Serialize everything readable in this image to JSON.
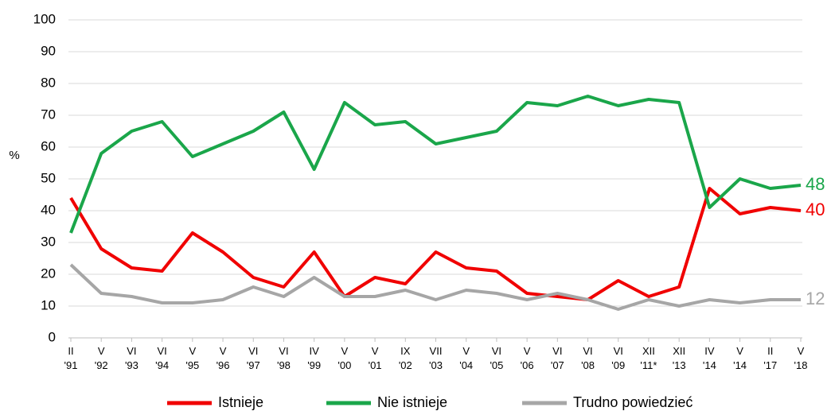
{
  "chart_data": {
    "type": "line",
    "y_label": "%",
    "categories": [
      [
        "II",
        "'91"
      ],
      [
        "V",
        "'92"
      ],
      [
        "VI",
        "'93"
      ],
      [
        "VI",
        "'94"
      ],
      [
        "V",
        "'95"
      ],
      [
        "V",
        "'96"
      ],
      [
        "VI",
        "'97"
      ],
      [
        "VI",
        "'98"
      ],
      [
        "IV",
        "'99"
      ],
      [
        "V",
        "'00"
      ],
      [
        "V",
        "'01"
      ],
      [
        "IX",
        "'02"
      ],
      [
        "VII",
        "'03"
      ],
      [
        "V",
        "'04"
      ],
      [
        "VI",
        "'05"
      ],
      [
        "V",
        "'06"
      ],
      [
        "VI",
        "'07"
      ],
      [
        "VI",
        "'08"
      ],
      [
        "VI",
        "'09"
      ],
      [
        "XII",
        "'11*"
      ],
      [
        "XII",
        "'13"
      ],
      [
        "IV",
        "'14"
      ],
      [
        "V",
        "'14"
      ],
      [
        "II",
        "'17"
      ],
      [
        "V",
        "'18"
      ]
    ],
    "series": [
      {
        "name": "Istnieje",
        "color": "#f00000",
        "values": [
          44,
          28,
          22,
          21,
          33,
          27,
          19,
          16,
          27,
          13,
          19,
          17,
          27,
          22,
          21,
          14,
          13,
          12,
          18,
          13,
          16,
          47,
          39,
          41,
          40
        ]
      },
      {
        "name": "Nie istnieje",
        "color": "#1aa64a",
        "values": [
          33,
          58,
          65,
          68,
          57,
          61,
          65,
          71,
          53,
          74,
          67,
          68,
          61,
          63,
          65,
          74,
          73,
          76,
          73,
          75,
          74,
          41,
          50,
          47,
          48
        ]
      },
      {
        "name": "Trudno powiedzieć",
        "color": "#a6a6a6",
        "values": [
          23,
          14,
          13,
          11,
          11,
          12,
          16,
          13,
          19,
          13,
          13,
          15,
          12,
          15,
          14,
          12,
          14,
          12,
          9,
          12,
          10,
          12,
          11,
          12,
          12
        ]
      }
    ],
    "ylim": [
      0,
      100
    ],
    "yticks": [
      0,
      10,
      20,
      30,
      40,
      50,
      60,
      70,
      80,
      90,
      100
    ],
    "grid": true,
    "end_labels": true,
    "legend": "bottom"
  }
}
